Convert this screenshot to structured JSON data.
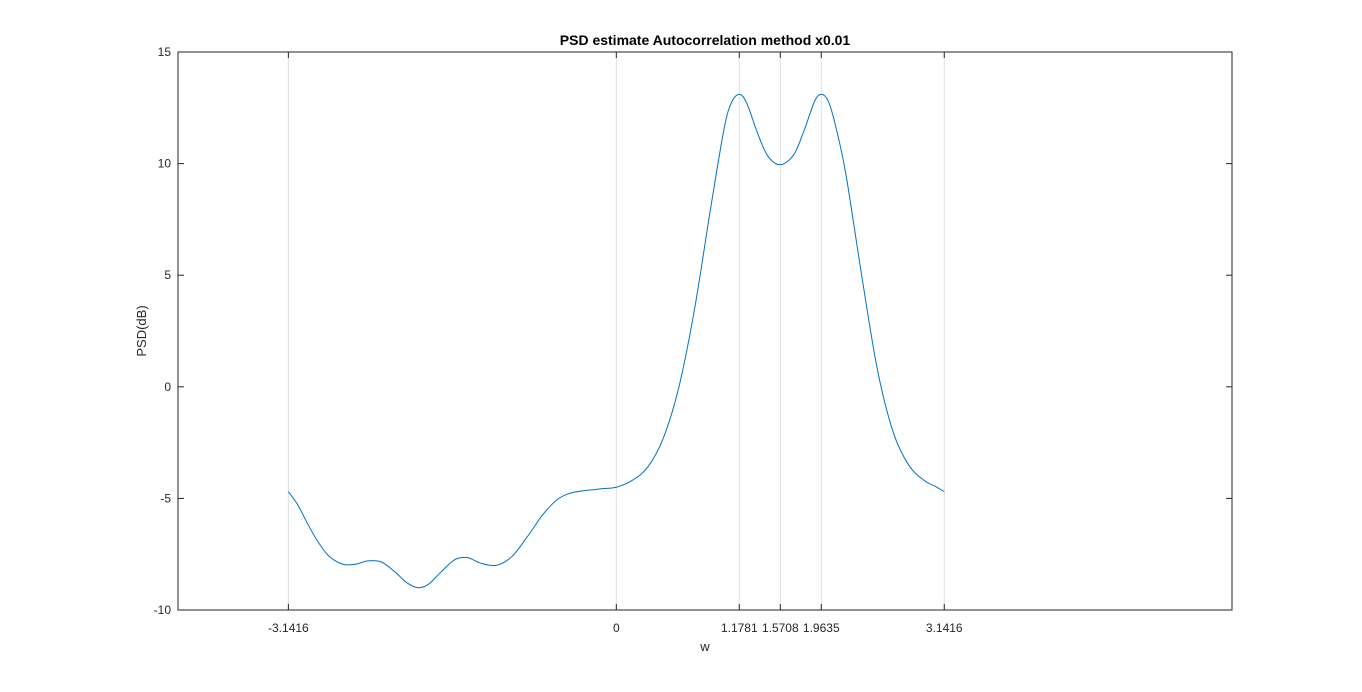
{
  "chart_data": {
    "type": "line",
    "title": "PSD estimate Autocorrelation method x0.01",
    "xlabel": "w",
    "ylabel": "PSD(dB)",
    "xlim": [
      -4.199,
      5.898
    ],
    "ylim": [
      -10,
      15
    ],
    "x_ticks": [
      -3.1416,
      0,
      1.1781,
      1.5708,
      1.9635,
      3.1416
    ],
    "x_tick_labels": [
      "-3.1416",
      "0",
      "1.1781",
      "1.5708",
      "1.9635",
      "3.1416"
    ],
    "y_ticks": [
      -10,
      -5,
      0,
      5,
      10,
      15
    ],
    "y_tick_labels": [
      "-10",
      "-5",
      "0",
      "5",
      "10",
      "15"
    ],
    "x_grid": true,
    "y_grid": false,
    "series": [
      {
        "name": "PSD",
        "color": "#0072bd",
        "points": [
          [
            -3.1416,
            -4.7
          ],
          [
            -3.05,
            -5.3
          ],
          [
            -2.95,
            -6.2
          ],
          [
            -2.85,
            -7.0
          ],
          [
            -2.75,
            -7.6
          ],
          [
            -2.62,
            -7.95
          ],
          [
            -2.5,
            -7.95
          ],
          [
            -2.38,
            -7.8
          ],
          [
            -2.25,
            -7.85
          ],
          [
            -2.12,
            -8.3
          ],
          [
            -2.0,
            -8.8
          ],
          [
            -1.9,
            -9.0
          ],
          [
            -1.8,
            -8.85
          ],
          [
            -1.68,
            -8.3
          ],
          [
            -1.55,
            -7.75
          ],
          [
            -1.43,
            -7.65
          ],
          [
            -1.3,
            -7.9
          ],
          [
            -1.15,
            -8.0
          ],
          [
            -1.0,
            -7.6
          ],
          [
            -0.85,
            -6.7
          ],
          [
            -0.7,
            -5.7
          ],
          [
            -0.55,
            -5.0
          ],
          [
            -0.4,
            -4.72
          ],
          [
            -0.2,
            -4.6
          ],
          [
            -0.1,
            -4.55
          ],
          [
            0.0,
            -4.5
          ],
          [
            0.15,
            -4.2
          ],
          [
            0.3,
            -3.6
          ],
          [
            0.45,
            -2.3
          ],
          [
            0.6,
            0.0
          ],
          [
            0.75,
            3.5
          ],
          [
            0.9,
            7.9
          ],
          [
            1.03,
            11.5
          ],
          [
            1.1,
            12.7
          ],
          [
            1.1781,
            13.1
          ],
          [
            1.25,
            12.7
          ],
          [
            1.35,
            11.4
          ],
          [
            1.45,
            10.35
          ],
          [
            1.5708,
            9.95
          ],
          [
            1.7,
            10.4
          ],
          [
            1.8,
            11.5
          ],
          [
            1.9,
            12.8
          ],
          [
            1.9635,
            13.1
          ],
          [
            2.03,
            12.8
          ],
          [
            2.1,
            11.7
          ],
          [
            2.2,
            9.5
          ],
          [
            2.35,
            5.0
          ],
          [
            2.5,
            0.8
          ],
          [
            2.65,
            -2.0
          ],
          [
            2.8,
            -3.5
          ],
          [
            2.95,
            -4.2
          ],
          [
            3.05,
            -4.45
          ],
          [
            3.1416,
            -4.7
          ]
        ]
      }
    ]
  }
}
